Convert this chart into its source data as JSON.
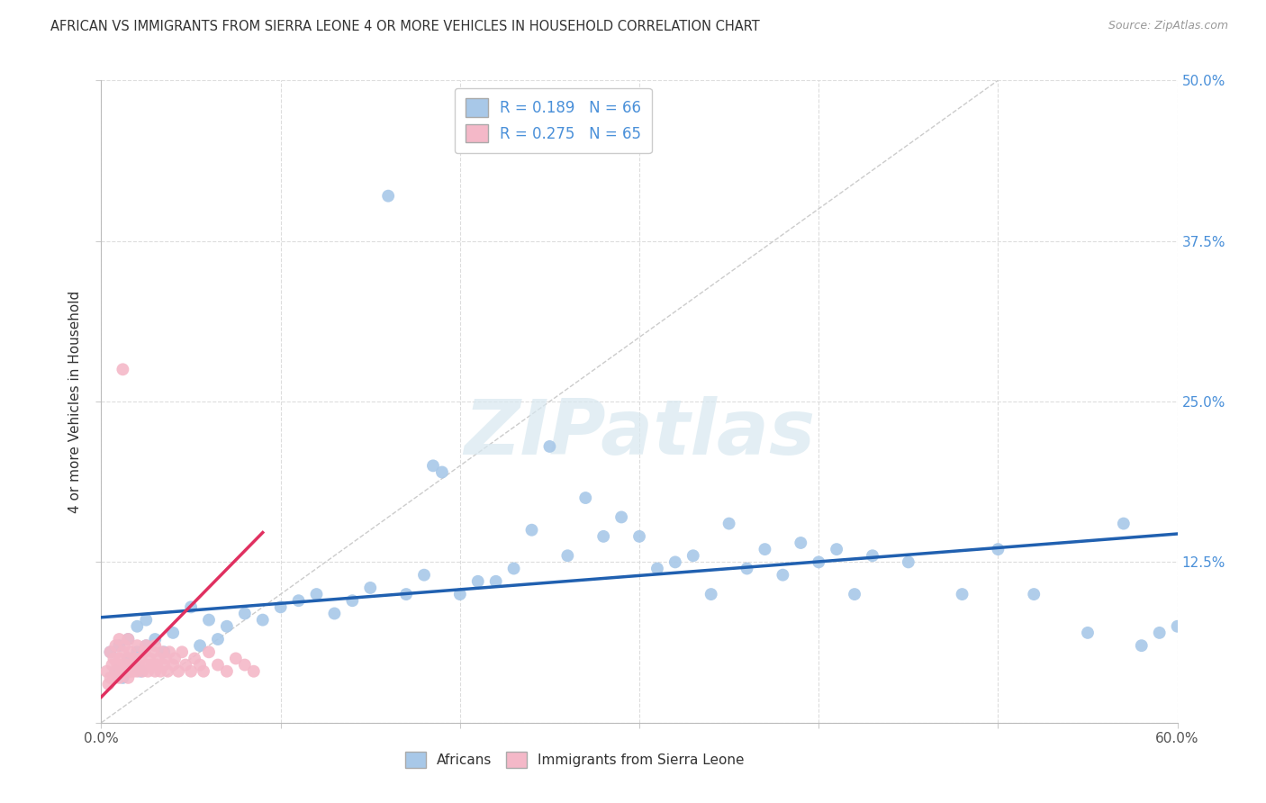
{
  "title": "AFRICAN VS IMMIGRANTS FROM SIERRA LEONE 4 OR MORE VEHICLES IN HOUSEHOLD CORRELATION CHART",
  "source": "Source: ZipAtlas.com",
  "ylabel": "4 or more Vehicles in Household",
  "xlim": [
    0,
    0.6
  ],
  "ylim": [
    0,
    0.5
  ],
  "xticks": [
    0.0,
    0.1,
    0.2,
    0.3,
    0.4,
    0.5,
    0.6
  ],
  "xticklabels": [
    "0.0%",
    "",
    "",
    "",
    "",
    "",
    "60.0%"
  ],
  "yticks": [
    0.0,
    0.125,
    0.25,
    0.375,
    0.5
  ],
  "yticklabels_right": [
    "",
    "12.5%",
    "25.0%",
    "37.5%",
    "50.0%"
  ],
  "blue_color": "#a8c8e8",
  "pink_color": "#f4b8c8",
  "blue_line_color": "#2060b0",
  "pink_line_color": "#e03060",
  "diag_color": "#cccccc",
  "grid_color": "#dddddd",
  "r_blue": 0.189,
  "n_blue": 66,
  "r_pink": 0.275,
  "n_pink": 65,
  "legend_labels": [
    "Africans",
    "Immigrants from Sierra Leone"
  ],
  "watermark": "ZIPatlas",
  "blue_trend_x": [
    0.0,
    0.6
  ],
  "blue_trend_y": [
    0.082,
    0.147
  ],
  "pink_trend_x": [
    0.0,
    0.09
  ],
  "pink_trend_y": [
    0.02,
    0.148
  ],
  "africans_x": [
    0.005,
    0.008,
    0.01,
    0.012,
    0.015,
    0.015,
    0.018,
    0.02,
    0.02,
    0.022,
    0.025,
    0.025,
    0.03,
    0.035,
    0.04,
    0.05,
    0.055,
    0.06,
    0.065,
    0.07,
    0.08,
    0.09,
    0.1,
    0.11,
    0.12,
    0.13,
    0.14,
    0.15,
    0.16,
    0.17,
    0.18,
    0.185,
    0.19,
    0.2,
    0.21,
    0.22,
    0.23,
    0.24,
    0.25,
    0.26,
    0.27,
    0.28,
    0.29,
    0.3,
    0.31,
    0.32,
    0.33,
    0.34,
    0.35,
    0.36,
    0.37,
    0.38,
    0.39,
    0.4,
    0.41,
    0.42,
    0.43,
    0.45,
    0.48,
    0.5,
    0.52,
    0.55,
    0.57,
    0.58,
    0.59,
    0.6
  ],
  "africans_y": [
    0.055,
    0.04,
    0.06,
    0.035,
    0.05,
    0.065,
    0.045,
    0.055,
    0.075,
    0.04,
    0.06,
    0.08,
    0.065,
    0.055,
    0.07,
    0.09,
    0.06,
    0.08,
    0.065,
    0.075,
    0.085,
    0.08,
    0.09,
    0.095,
    0.1,
    0.085,
    0.095,
    0.105,
    0.41,
    0.1,
    0.115,
    0.2,
    0.195,
    0.1,
    0.11,
    0.11,
    0.12,
    0.15,
    0.215,
    0.13,
    0.175,
    0.145,
    0.16,
    0.145,
    0.12,
    0.125,
    0.13,
    0.1,
    0.155,
    0.12,
    0.135,
    0.115,
    0.14,
    0.125,
    0.135,
    0.1,
    0.13,
    0.125,
    0.1,
    0.135,
    0.1,
    0.07,
    0.155,
    0.06,
    0.07,
    0.075
  ],
  "sl_x": [
    0.003,
    0.004,
    0.005,
    0.005,
    0.006,
    0.007,
    0.007,
    0.008,
    0.008,
    0.009,
    0.01,
    0.01,
    0.01,
    0.011,
    0.012,
    0.012,
    0.013,
    0.013,
    0.014,
    0.015,
    0.015,
    0.015,
    0.016,
    0.016,
    0.017,
    0.018,
    0.019,
    0.02,
    0.02,
    0.021,
    0.022,
    0.023,
    0.024,
    0.025,
    0.025,
    0.026,
    0.027,
    0.028,
    0.029,
    0.03,
    0.03,
    0.031,
    0.032,
    0.033,
    0.034,
    0.035,
    0.036,
    0.037,
    0.038,
    0.04,
    0.041,
    0.043,
    0.045,
    0.047,
    0.05,
    0.052,
    0.055,
    0.057,
    0.06,
    0.065,
    0.07,
    0.075,
    0.08,
    0.085,
    0.012
  ],
  "sl_y": [
    0.04,
    0.03,
    0.035,
    0.055,
    0.045,
    0.035,
    0.05,
    0.04,
    0.06,
    0.045,
    0.035,
    0.05,
    0.065,
    0.04,
    0.045,
    0.055,
    0.04,
    0.06,
    0.045,
    0.035,
    0.05,
    0.065,
    0.04,
    0.055,
    0.045,
    0.04,
    0.05,
    0.04,
    0.06,
    0.045,
    0.05,
    0.04,
    0.055,
    0.045,
    0.06,
    0.04,
    0.05,
    0.045,
    0.055,
    0.04,
    0.06,
    0.045,
    0.05,
    0.04,
    0.055,
    0.045,
    0.05,
    0.04,
    0.055,
    0.045,
    0.05,
    0.04,
    0.055,
    0.045,
    0.04,
    0.05,
    0.045,
    0.04,
    0.055,
    0.045,
    0.04,
    0.05,
    0.045,
    0.04,
    0.275
  ]
}
